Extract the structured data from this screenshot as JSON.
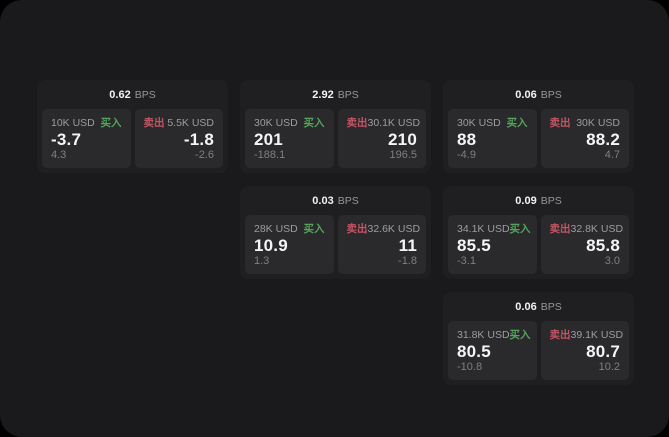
{
  "labels": {
    "bps_unit": "BPS",
    "buy": "买入",
    "sell": "卖出"
  },
  "colors": {
    "page_bg": "#1a1a1c",
    "card_bg": "#1f1f22",
    "panel_bg": "#2a2a2d",
    "buy_green": "#55a35c",
    "sell_red": "#c25563"
  },
  "cards": [
    {
      "bps": "0.62",
      "buy": {
        "amount": "10K USD",
        "price": "-3.7",
        "delta": "4.3"
      },
      "sell": {
        "amount": "5.5K USD",
        "price": "-1.8",
        "delta": "-2.6"
      }
    },
    {
      "bps": "2.92",
      "buy": {
        "amount": "30K USD",
        "price": "201",
        "delta": "-188.1"
      },
      "sell": {
        "amount": "30.1K USD",
        "price": "210",
        "delta": "196.5"
      }
    },
    {
      "bps": "0.06",
      "buy": {
        "amount": "30K USD",
        "price": "88",
        "delta": "-4.9"
      },
      "sell": {
        "amount": "30K USD",
        "price": "88.2",
        "delta": "4.7"
      }
    },
    {
      "bps": "0.03",
      "buy": {
        "amount": "28K USD",
        "price": "10.9",
        "delta": "1.3"
      },
      "sell": {
        "amount": "32.6K USD",
        "price": "11",
        "delta": "-1.8"
      }
    },
    {
      "bps": "0.09",
      "buy": {
        "amount": "34.1K USD",
        "price": "85.5",
        "delta": "-3.1"
      },
      "sell": {
        "amount": "32.8K USD",
        "price": "85.8",
        "delta": "3.0"
      }
    },
    {
      "bps": "0.06",
      "buy": {
        "amount": "31.8K USD",
        "price": "80.5",
        "delta": "-10.8"
      },
      "sell": {
        "amount": "39.1K USD",
        "price": "80.7",
        "delta": "10.2"
      }
    }
  ]
}
